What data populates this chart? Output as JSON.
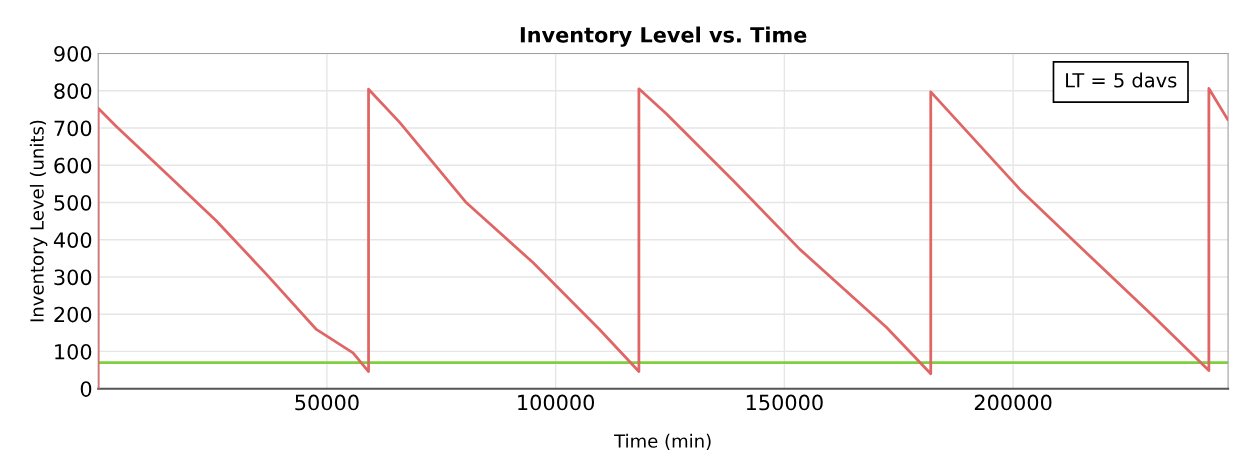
{
  "chart_data": {
    "type": "line",
    "title": "Inventory Level vs. Time",
    "xlabel": "Time (min)",
    "ylabel": "Inventory Level (units)",
    "xlim": [
      0,
      247000
    ],
    "xticks": [
      50000,
      100000,
      150000,
      200000
    ],
    "ylim": [
      0,
      900
    ],
    "yticks": [
      0,
      100,
      200,
      300,
      400,
      500,
      600,
      700,
      800,
      900
    ],
    "grid": true,
    "legend": false,
    "marker": "none",
    "line_style": "solid",
    "series": [
      {
        "color": "#e06666",
        "x": [
          0,
          0,
          3970,
          14900,
          25800,
          36800,
          47700,
          55700,
          59100,
          59100,
          65900,
          80500,
          95100,
          109600,
          118200,
          118200,
          124200,
          138800,
          153400,
          172300,
          182000,
          182000,
          186900,
          201500,
          216000,
          230600,
          242800,
          242800,
          246900
        ],
        "values": [
          0,
          753,
          704,
          578,
          451,
          307,
          159,
          96,
          46,
          804,
          715,
          499,
          338,
          159,
          46,
          805,
          738,
          559,
          374,
          165,
          40,
          797,
          731,
          535,
          365,
          195,
          49,
          806,
          723
        ]
      }
    ],
    "ref_lines": [
      {
        "axis": "y",
        "value": 70,
        "color": "#7fd03f",
        "line_style": "solid"
      }
    ],
    "annotations": [
      "LT = 5 davs"
    ]
  }
}
